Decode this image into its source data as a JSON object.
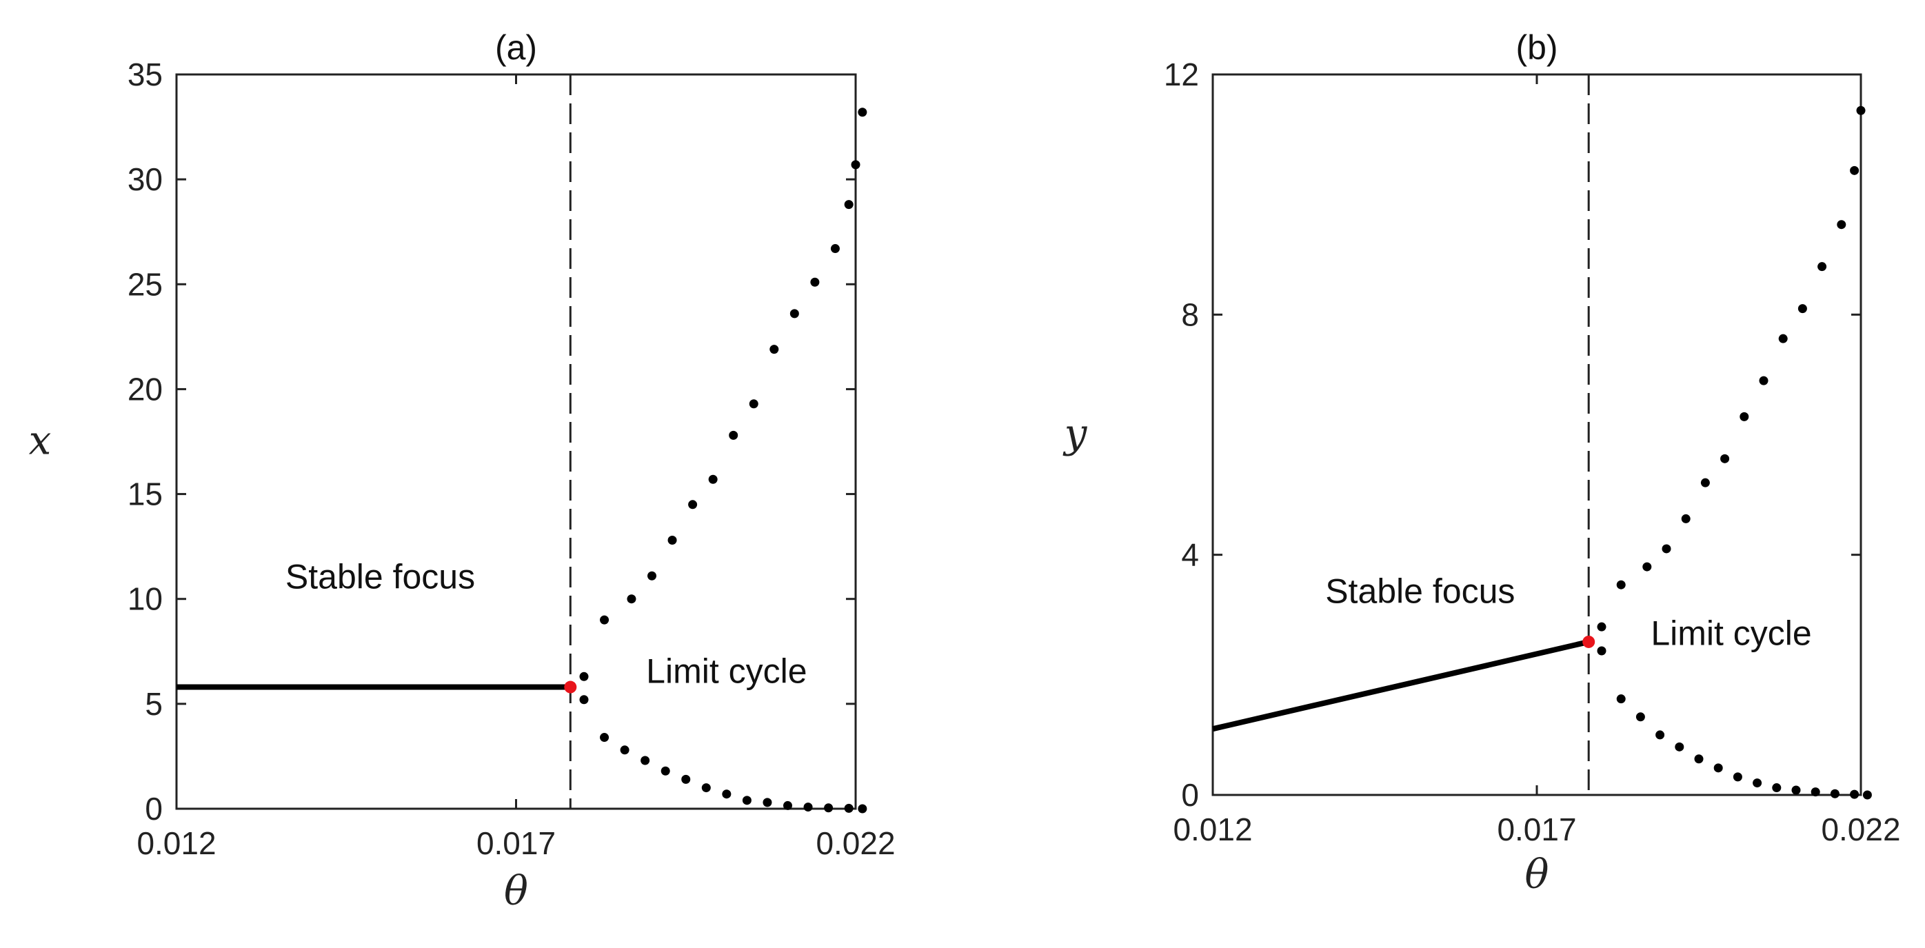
{
  "chart_data": [
    {
      "type": "scatter",
      "title": "(a)",
      "xlabel": "θ",
      "ylabel": "x",
      "xlim": [
        0.012,
        0.022
      ],
      "ylim": [
        0,
        35
      ],
      "xticks": [
        0.012,
        0.017,
        0.022
      ],
      "xtick_labels": [
        "0.012",
        "0.017",
        "0.022"
      ],
      "yticks": [
        0,
        5,
        10,
        15,
        20,
        25,
        30,
        35
      ],
      "ytick_labels": [
        "0",
        "5",
        "10",
        "15",
        "20",
        "25",
        "30",
        "35"
      ],
      "grid": false,
      "annotations": [
        {
          "text": "Stable focus",
          "x": 0.015,
          "y": 10.5
        },
        {
          "text": "Limit cycle",
          "x": 0.0201,
          "y": 6.0
        }
      ],
      "hopf_line_x": 0.0178,
      "hopf_point": {
        "x": 0.0178,
        "y": 5.8,
        "color": "#e8141b"
      },
      "stable_branch": {
        "x": [
          0.012,
          0.0178
        ],
        "y": [
          5.8,
          5.8
        ]
      },
      "upper_branch": {
        "x": [
          0.018,
          0.0183,
          0.0187,
          0.019,
          0.0193,
          0.0196,
          0.0199,
          0.0202,
          0.0205,
          0.0208,
          0.0211,
          0.0214,
          0.0217,
          0.0219,
          0.022
        ],
        "y": [
          6.3,
          9.0,
          10.0,
          11.1,
          12.8,
          14.5,
          15.7,
          17.8,
          19.3,
          21.9,
          23.6,
          25.1,
          26.7,
          28.8,
          30.7
        ]
      },
      "lower_branch": {
        "x": [
          0.018,
          0.0183,
          0.0186,
          0.0189,
          0.0192,
          0.0195,
          0.0198,
          0.0201,
          0.0204,
          0.0207,
          0.021,
          0.0213,
          0.0216,
          0.0219,
          0.0221
        ],
        "y": [
          5.2,
          3.4,
          2.8,
          2.3,
          1.8,
          1.4,
          1.0,
          0.7,
          0.4,
          0.3,
          0.15,
          0.08,
          0.04,
          0.02,
          0.0
        ]
      },
      "extra_top_point": {
        "x": 0.0221,
        "y": 33.2
      }
    },
    {
      "type": "scatter",
      "title": "(b)",
      "xlabel": "θ",
      "ylabel": "y",
      "xlim": [
        0.012,
        0.022
      ],
      "ylim": [
        0,
        12
      ],
      "xticks": [
        0.012,
        0.017,
        0.022
      ],
      "xtick_labels": [
        "0.012",
        "0.017",
        "0.022"
      ],
      "yticks": [
        0,
        4,
        8,
        12
      ],
      "ytick_labels": [
        "0",
        "4",
        "8",
        "12"
      ],
      "grid": false,
      "annotations": [
        {
          "text": "Stable focus",
          "x": 0.0152,
          "y": 3.2
        },
        {
          "text": "Limit cycle",
          "x": 0.02,
          "y": 2.5
        }
      ],
      "hopf_line_x": 0.0178,
      "hopf_point": {
        "x": 0.0178,
        "y": 2.55,
        "color": "#e8141b"
      },
      "stable_branch": {
        "x": [
          0.012,
          0.0178
        ],
        "y": [
          1.1,
          2.55
        ]
      },
      "upper_branch": {
        "x": [
          0.018,
          0.0183,
          0.0187,
          0.019,
          0.0193,
          0.0196,
          0.0199,
          0.0202,
          0.0205,
          0.0208,
          0.0211,
          0.0214,
          0.0217,
          0.0219,
          0.022
        ],
        "y": [
          2.8,
          3.5,
          3.8,
          4.1,
          4.6,
          5.2,
          5.6,
          6.3,
          6.9,
          7.6,
          8.1,
          8.8,
          9.5,
          10.4,
          11.4
        ]
      },
      "lower_branch": {
        "x": [
          0.018,
          0.0183,
          0.0186,
          0.0189,
          0.0192,
          0.0195,
          0.0198,
          0.0201,
          0.0204,
          0.0207,
          0.021,
          0.0213,
          0.0216,
          0.0219,
          0.0221
        ],
        "y": [
          2.4,
          1.6,
          1.3,
          1.0,
          0.8,
          0.6,
          0.45,
          0.3,
          0.2,
          0.12,
          0.08,
          0.05,
          0.02,
          0.01,
          0.0
        ]
      }
    }
  ]
}
